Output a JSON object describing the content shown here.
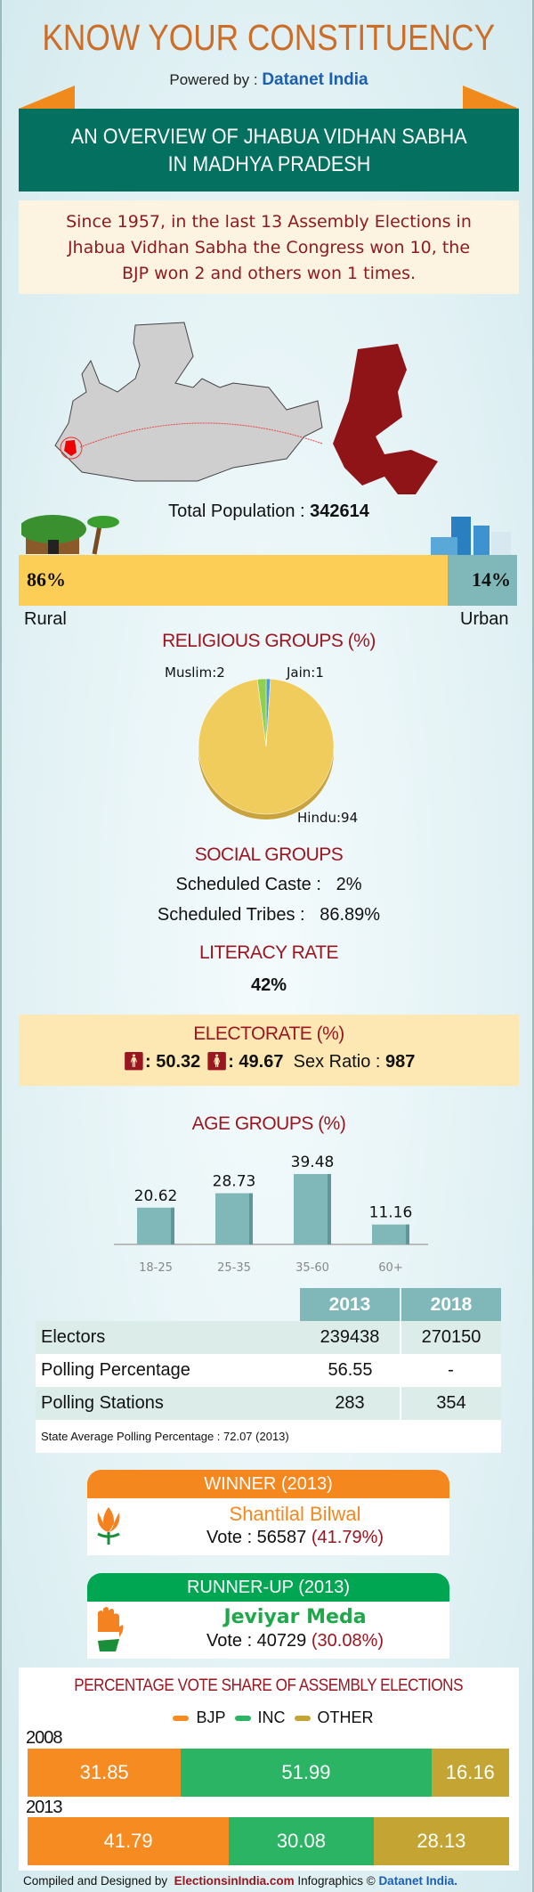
{
  "header": {
    "title": "KNOW YOUR CONSTITUENCY",
    "powered_by": "Powered by :",
    "brand": "Datanet India"
  },
  "banner": {
    "line1": "AN OVERVIEW OF JHABUA VIDHAN SABHA",
    "line2": "IN MADHYA PRADESH"
  },
  "intro": {
    "line1": "Since 1957, in the last 13 Assembly Elections in",
    "line2": "Jhabua Vidhan Sabha the Congress won 10, the",
    "line3": "BJP won 2 and others won 1 times."
  },
  "colors": {
    "map_highlight": "#8e1418",
    "rural": "#fdce56",
    "urban": "#80b8b9",
    "bjp": "#f68b22",
    "inc": "#2bb463",
    "other": "#c4a534",
    "banner": "#037060"
  },
  "population": {
    "label": "Total Population :",
    "value": "342614",
    "rural_pct": "86%",
    "urban_pct": "14%",
    "rural_label": "Rural",
    "urban_label": "Urban",
    "rural_fraction": 86
  },
  "religion": {
    "title": "RELIGIOUS GROUPS",
    "unit": "(%)",
    "chart_data": {
      "type": "pie",
      "slices": [
        {
          "label": "Hindu",
          "value": 94,
          "text": "Hindu:94",
          "color": "#efcc5b"
        },
        {
          "label": "Muslim",
          "value": 2,
          "text": "Muslim:2",
          "color": "#8fd14f"
        },
        {
          "label": "Jain",
          "value": 1,
          "text": "Jain:1",
          "color": "#4a9be0"
        }
      ]
    }
  },
  "social": {
    "title": "SOCIAL GROUPS",
    "sc_label": "Scheduled Caste :",
    "sc_value": "2%",
    "st_label": "Scheduled Tribes :",
    "st_value": "86.89%"
  },
  "literacy": {
    "title": "LITERACY RATE",
    "value": "42%"
  },
  "electorate": {
    "title": "ELECTORATE",
    "unit": "(%)",
    "male": ": 50.32",
    "female": ": 49.67",
    "sex_ratio_label": "Sex Ratio :",
    "sex_ratio": "987"
  },
  "age": {
    "title": "AGE GROUPS",
    "unit": "(%)",
    "chart_data": {
      "type": "bar",
      "categories": [
        "18-25",
        "25-35",
        "35-60",
        "60+"
      ],
      "values": [
        20.62,
        28.73,
        39.48,
        11.16
      ],
      "labels": [
        "20.62",
        "28.73",
        "39.48",
        "11.16"
      ]
    }
  },
  "stats": {
    "years": [
      "2013",
      "2018"
    ],
    "rows": [
      {
        "label": "Electors",
        "v2013": "239438",
        "v2018": "270150"
      },
      {
        "label": "Polling Percentage",
        "v2013": "56.55",
        "v2018": "-"
      },
      {
        "label": "Polling Stations",
        "v2013": "283",
        "v2018": "354"
      }
    ],
    "note": "State Average Polling Percentage : 72.07 (2013)"
  },
  "winner": {
    "title": "WINNER",
    "year": "(2013)",
    "name": "Shantilal Bilwal",
    "vote_label": "Vote : 56587",
    "vote_pct": "(41.79%)",
    "party_icon": "bjp-lotus"
  },
  "runner": {
    "title": "RUNNER-UP",
    "year": "(2013)",
    "name": "Jeviyar Meda",
    "vote_label": "Vote : 40729",
    "vote_pct": "(30.08%)",
    "party_icon": "congress-hand"
  },
  "vote_share": {
    "title": "PERCENTAGE VOTE SHARE OF ASSEMBLY ELECTIONS",
    "chart_data": {
      "type": "bar",
      "stacked": true,
      "orientation": "horizontal",
      "legend": [
        "BJP",
        "INC",
        "OTHER"
      ],
      "legend_position": "top",
      "rows": [
        {
          "year": "2008",
          "values": [
            31.85,
            51.99,
            16.16
          ],
          "labels": [
            "31.85",
            "51.99",
            "16.16"
          ]
        },
        {
          "year": "2013",
          "values": [
            41.79,
            30.08,
            28.13
          ],
          "labels": [
            "41.79",
            "30.08",
            "28.13"
          ]
        }
      ]
    }
  },
  "footer": {
    "prefix": "Compiled and Designed by",
    "site": "ElectionsinIndia.com",
    "mid": "Infographics ©",
    "brand": "Datanet India."
  }
}
